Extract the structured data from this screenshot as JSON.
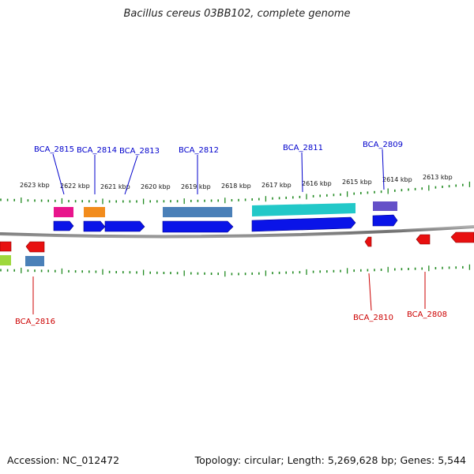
{
  "title": "Bacillus cereus 03BB102, complete genome",
  "footer": {
    "accession": "Accession: NC_012472",
    "topology": "Topology: circular; Length: 5,269,628 bp; Genes: 5,544"
  },
  "colors": {
    "forward_label": "#0000cc",
    "reverse_label": "#cc0000",
    "ticks": "#228b22",
    "backbone": "#808080"
  },
  "kbp_ticks": [
    "2623 kbp",
    "2622 kbp",
    "2621 kbp",
    "2620 kbp",
    "2619 kbp",
    "2618 kbp",
    "2617 kbp",
    "2616 kbp",
    "2615 kbp",
    "2614 kbp",
    "2613 kbp"
  ],
  "forward_genes": [
    "BCA_2815",
    "BCA_2814",
    "BCA_2813",
    "BCA_2812",
    "BCA_2811",
    "BCA_2809"
  ],
  "reverse_genes": [
    "BCA_2816",
    "BCA_2810",
    "BCA_2808"
  ]
}
